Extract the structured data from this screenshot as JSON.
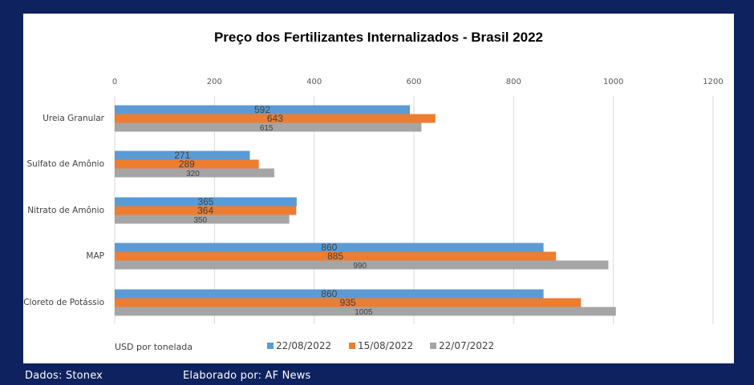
{
  "chart_data": {
    "type": "bar",
    "orientation": "horizontal",
    "title": "Preço dos Fertilizantes Internalizados  - Brasil 2022",
    "categories": [
      "Ureia Granular",
      "Sulfato de Amônio",
      "Nitrato de Amônio",
      "MAP",
      "Cloreto de Potássio"
    ],
    "series": [
      {
        "name": "22/08/2022",
        "color": "#5b9bd5",
        "values": [
          592,
          271,
          365,
          860,
          860
        ]
      },
      {
        "name": "15/08/2022",
        "color": "#ed7d31",
        "values": [
          643,
          289,
          364,
          885,
          935
        ]
      },
      {
        "name": "22/07/2022",
        "color": "#a5a5a5",
        "values": [
          615,
          320,
          350,
          990,
          1005
        ]
      }
    ],
    "xlim": [
      0,
      1200
    ],
    "xticks": [
      0,
      200,
      400,
      600,
      800,
      1000,
      1200
    ],
    "unit_note": "USD por tonelada",
    "grid": true,
    "legend_position": "bottom"
  },
  "footer": {
    "source": "Dados: Stonex",
    "author": "Elaborado por: AF News"
  }
}
